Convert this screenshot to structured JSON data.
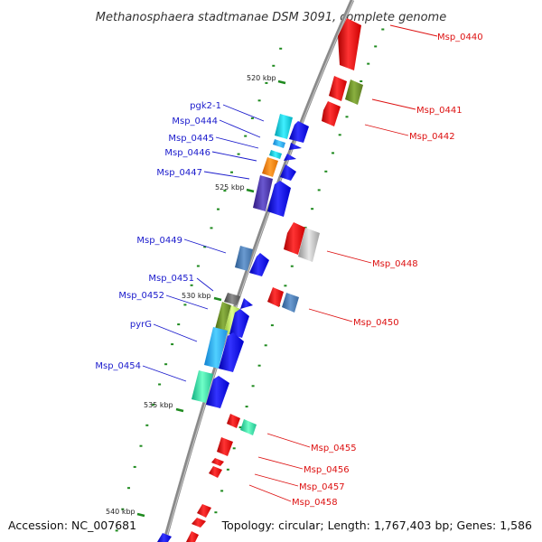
{
  "title": "Methanosphaera stadtmanae DSM 3091, complete genome",
  "footer": {
    "accession": "Accession: NC_007681",
    "summary": "Topology: circular; Length: 1,767,403 bp; Genes: 1,586"
  },
  "kbp_labels": [
    "520 kbp",
    "525 kbp",
    "530 kbp",
    "535 kbp",
    "540 kbp"
  ],
  "forward_labels": [
    "pgk2-1",
    "Msp_0444",
    "Msp_0445",
    "Msp_0446",
    "Msp_0447",
    "Msp_0449",
    "Msp_0451",
    "Msp_0452",
    "pyrG",
    "Msp_0454"
  ],
  "reverse_labels": [
    "Msp_0440",
    "Msp_0441",
    "Msp_0442",
    "Msp_0448",
    "Msp_0450",
    "Msp_0455",
    "Msp_0456",
    "Msp_0457",
    "Msp_0458"
  ],
  "colors": {
    "forward_strand": "#1010ee",
    "reverse_strand": "#ee1111",
    "forward_label": "#1a1acc",
    "reverse_label": "#dd1111",
    "backbone": "#888888",
    "tick": "#1f8a1f"
  }
}
